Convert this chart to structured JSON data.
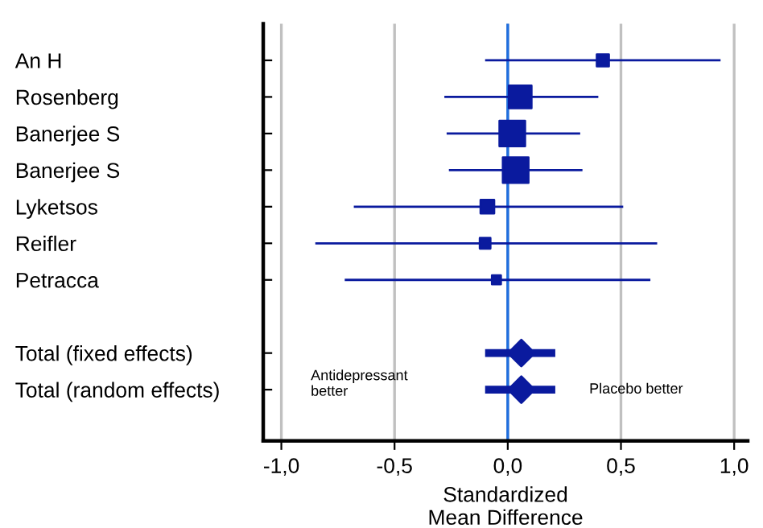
{
  "chart_data": {
    "type": "scatter",
    "orientation": "horizontal",
    "categories": [
      "An H",
      "Rosenberg",
      "Banerjee S",
      "Banerjee S",
      "Lyketsos",
      "Reifler",
      "Petracca",
      null,
      "Total (fixed effects)",
      "Total (random effects)"
    ],
    "series": [
      {
        "type": "bubble",
        "marker": "square",
        "color": "#0a1a9e",
        "values": [
          0.42,
          0.055,
          0.02,
          0.035,
          -0.09,
          -0.1,
          -0.05,
          null,
          null,
          null
        ],
        "sizes": [
          0.22,
          0.78,
          1,
          1,
          0.28,
          0.17,
          0.12,
          null,
          null,
          null
        ],
        "errors": [
          [
            -0.1,
            0.94
          ],
          [
            -0.28,
            0.4
          ],
          [
            -0.27,
            0.32
          ],
          [
            -0.26,
            0.33
          ],
          [
            -0.68,
            0.51
          ],
          [
            -0.85,
            0.66
          ],
          [
            -0.72,
            0.63
          ],
          null,
          null,
          null
        ]
      },
      {
        "type": "scatter",
        "marker": "diamond",
        "color": "#0a1a9e",
        "values": [
          null,
          null,
          null,
          null,
          null,
          null,
          null,
          null,
          0.06,
          0.06
        ],
        "errors": [
          null,
          null,
          null,
          null,
          null,
          null,
          null,
          null,
          [
            -0.1,
            0.21
          ],
          [
            -0.1,
            0.21
          ]
        ]
      }
    ],
    "xlim": [
      -1.08,
      1.06
    ],
    "xticks": [
      {
        "value": -1,
        "label": "-1,0"
      },
      {
        "value": -0.5,
        "label": "-0,5"
      },
      {
        "value": 0,
        "label": "0,0"
      },
      {
        "value": 0.5,
        "label": "0,5"
      },
      {
        "value": 1,
        "label": "1,0"
      }
    ],
    "xlabel": "Standardized\nMean Difference",
    "grid": "x",
    "ref_lines": [
      {
        "axis": "x",
        "value": 0,
        "color": "#1f6fe0"
      }
    ],
    "annotations": [
      "Antidepressant\nbetter",
      "Placebo better"
    ]
  }
}
